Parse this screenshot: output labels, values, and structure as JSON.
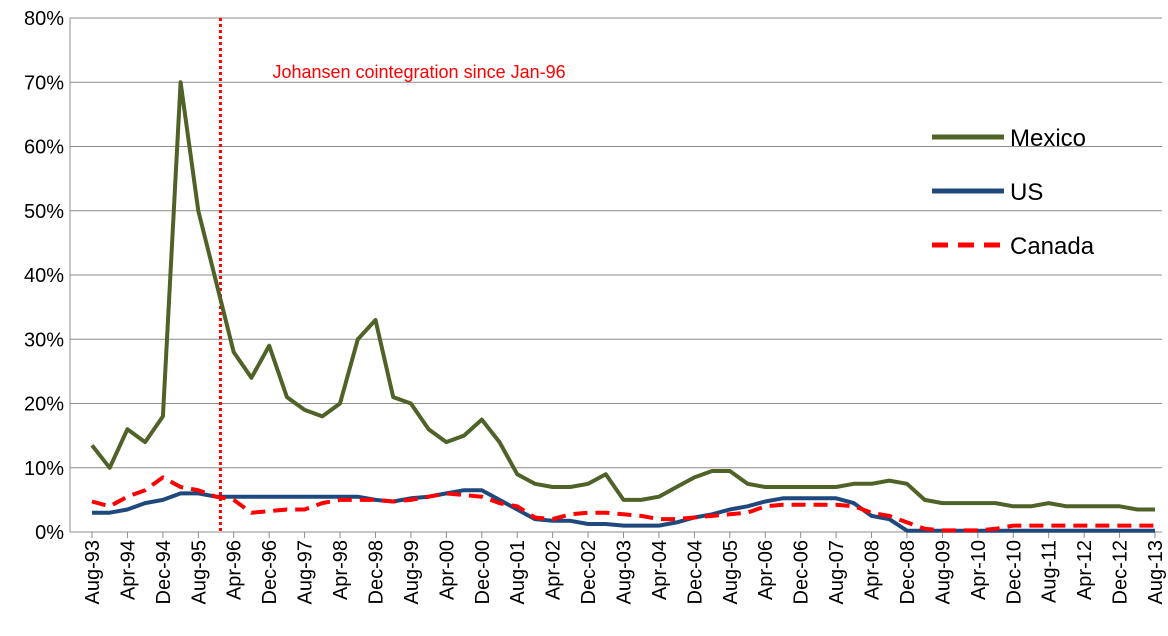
{
  "chart_data": {
    "type": "line",
    "annotation": {
      "text": "Johansen  cointegration  since Jan-96",
      "x": "Jan-96",
      "color": "#ff0000"
    },
    "categories": [
      "Aug-93",
      null,
      "Apr-94",
      null,
      "Dec-94",
      null,
      "Aug-95",
      null,
      "Apr-96",
      null,
      "Dec-96",
      null,
      "Aug-97",
      null,
      "Apr-98",
      null,
      "Dec-98",
      null,
      "Aug-99",
      null,
      "Apr-00",
      null,
      "Dec-00",
      null,
      "Aug-01",
      null,
      "Apr-02",
      null,
      "Dec-02",
      null,
      "Aug-03",
      null,
      "Apr-04",
      null,
      "Dec-04",
      null,
      "Aug-05",
      null,
      "Apr-06",
      null,
      "Dec-06",
      null,
      "Aug-07",
      null,
      "Apr-08",
      null,
      "Dec-08",
      null,
      "Aug-09",
      null,
      "Apr-10",
      null,
      "Dec-10",
      null,
      "Aug-11",
      null,
      "Apr-12",
      null,
      "Dec-12",
      null,
      "Aug-13"
    ],
    "series": [
      {
        "name": "Mexico",
        "color": "#4f6228",
        "dash": false,
        "values": [
          13.5,
          10,
          16,
          14,
          18,
          70,
          50,
          39,
          28,
          24,
          29,
          21,
          19,
          18,
          20,
          30,
          33,
          21,
          20,
          16,
          14,
          15,
          17.5,
          14,
          9,
          7.5,
          7,
          7,
          7.5,
          9,
          5,
          5,
          5.5,
          7,
          8.5,
          9.5,
          9.5,
          7.5,
          7,
          7,
          7,
          7,
          7,
          7.5,
          7.5,
          8,
          7.5,
          5,
          4.5,
          4.5,
          4.5,
          4.5,
          4,
          4,
          4.5,
          4,
          4,
          4,
          4,
          3.5,
          3.5
        ]
      },
      {
        "name": "US",
        "color": "#1f497d",
        "dash": false,
        "values": [
          3,
          3,
          3.5,
          4.5,
          5,
          6,
          6,
          5.5,
          5.5,
          5.5,
          5.5,
          5.5,
          5.5,
          5.5,
          5.5,
          5.5,
          5,
          4.75,
          5.25,
          5.5,
          6,
          6.5,
          6.5,
          5,
          3.5,
          2,
          1.75,
          1.75,
          1.25,
          1.25,
          1,
          1,
          1,
          1.5,
          2.25,
          2.75,
          3.5,
          4,
          4.75,
          5.25,
          5.25,
          5.25,
          5.25,
          4.5,
          2.5,
          2,
          0.2,
          0.2,
          0.2,
          0.2,
          0.2,
          0.2,
          0.2,
          0.2,
          0.2,
          0.2,
          0.2,
          0.2,
          0.2,
          0.2,
          0.2
        ]
      },
      {
        "name": "Canada",
        "color": "#ff0000",
        "dash": true,
        "values": [
          4.75,
          4,
          5.5,
          6.5,
          8.5,
          7,
          6.5,
          5.5,
          5,
          3,
          3.25,
          3.5,
          3.5,
          4.5,
          5,
          5,
          5,
          4.75,
          5,
          5.5,
          6,
          5.75,
          5.5,
          4.5,
          4,
          2.25,
          2,
          2.75,
          3,
          3,
          2.75,
          2.5,
          2,
          2,
          2.25,
          2.5,
          2.75,
          3,
          4,
          4.25,
          4.25,
          4.25,
          4.25,
          4,
          3,
          2.5,
          1.5,
          0.5,
          0.25,
          0.25,
          0.25,
          0.5,
          1,
          1,
          1,
          1,
          1,
          1,
          1,
          1,
          1
        ]
      }
    ],
    "ylim": [
      0,
      80
    ],
    "yticks": [
      {
        "value": 0,
        "label": "0%"
      },
      {
        "value": 10,
        "label": "10%"
      },
      {
        "value": 20,
        "label": "20%"
      },
      {
        "value": 30,
        "label": "30%"
      },
      {
        "value": 40,
        "label": "40%"
      },
      {
        "value": 50,
        "label": "50%"
      },
      {
        "value": 60,
        "label": "60%"
      },
      {
        "value": 70,
        "label": "70%"
      },
      {
        "value": 80,
        "label": "80%"
      }
    ],
    "grid": true,
    "legend": "right"
  }
}
